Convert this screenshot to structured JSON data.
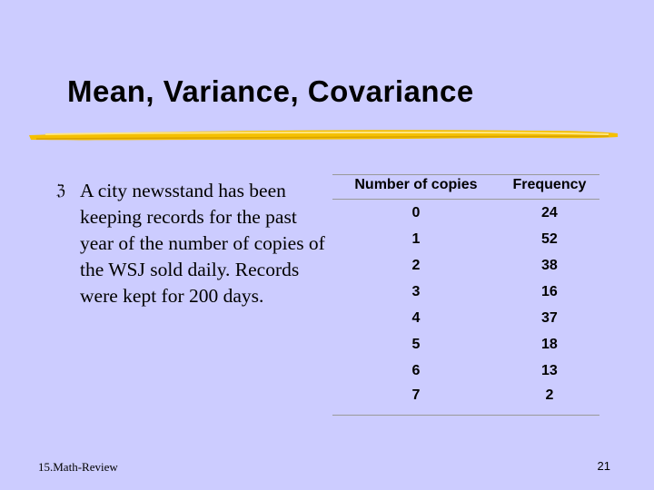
{
  "slide": {
    "title": "Mean, Variance, Covariance",
    "bullet": {
      "icon": "z-bullet-icon",
      "text": "A city newsstand has been keeping records for the past year of the number of copies of the WSJ sold daily. Records were kept for 200 days."
    },
    "table": {
      "headers": [
        "Number of copies",
        "Frequency"
      ],
      "rows": [
        [
          "0",
          "24"
        ],
        [
          "1",
          "52"
        ],
        [
          "2",
          "38"
        ],
        [
          "3",
          "16"
        ],
        [
          "4",
          "37"
        ],
        [
          "5",
          "18"
        ],
        [
          "6",
          "13"
        ],
        [
          "7",
          "2"
        ]
      ]
    },
    "footer": {
      "left": "15.Math-Review",
      "page_number": "21"
    },
    "colors": {
      "background": "#ccccff",
      "underline": "#f5c000"
    }
  }
}
